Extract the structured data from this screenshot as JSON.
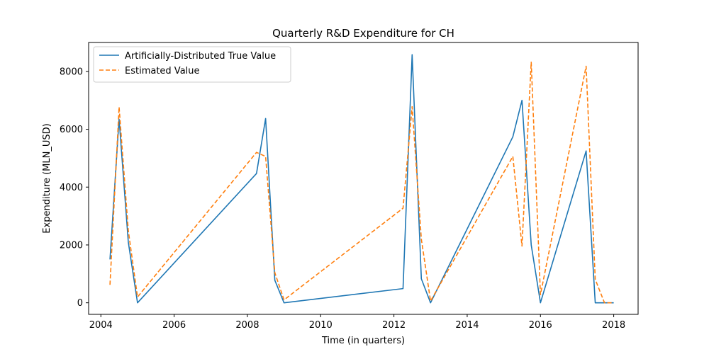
{
  "chart_data": {
    "type": "line",
    "title": "Quarterly R&D Expenditure for CH",
    "xlabel": "Time (in quarters)",
    "ylabel": "Expenditure (MLN_USD)",
    "xlim": [
      "2003-09-01",
      "2018-09-01"
    ],
    "ylim": [
      -400,
      9000
    ],
    "x_ticks": [
      "2004",
      "2006",
      "2008",
      "2010",
      "2012",
      "2014",
      "2016",
      "2018"
    ],
    "y_ticks": [
      0,
      2000,
      4000,
      6000,
      8000
    ],
    "legend_position": "top-left",
    "grid": false,
    "series": [
      {
        "name": "Artificially-Distributed True Value",
        "color": "#1f77b4",
        "style": "solid",
        "points": [
          [
            "2004-04-01",
            1500
          ],
          [
            "2004-07-01",
            6350
          ],
          [
            "2004-10-01",
            2100
          ],
          [
            "2005-01-01",
            0
          ],
          [
            "2008-04-01",
            4470
          ],
          [
            "2008-07-01",
            6370
          ],
          [
            "2008-10-01",
            780
          ],
          [
            "2009-01-01",
            0
          ],
          [
            "2012-04-01",
            490
          ],
          [
            "2012-07-01",
            8580
          ],
          [
            "2012-10-01",
            830
          ],
          [
            "2013-01-01",
            0
          ],
          [
            "2015-04-01",
            5740
          ],
          [
            "2015-07-01",
            7000
          ],
          [
            "2015-10-01",
            2000
          ],
          [
            "2016-01-01",
            0
          ],
          [
            "2017-04-01",
            5250
          ],
          [
            "2017-07-01",
            0
          ],
          [
            "2017-10-01",
            0
          ],
          [
            "2018-01-01",
            0
          ]
        ]
      },
      {
        "name": "Estimated Value",
        "color": "#ff7f0e",
        "style": "dashed",
        "points": [
          [
            "2004-04-01",
            620
          ],
          [
            "2004-07-01",
            6770
          ],
          [
            "2004-10-01",
            2500
          ],
          [
            "2005-01-01",
            200
          ],
          [
            "2008-04-01",
            5200
          ],
          [
            "2008-07-01",
            5060
          ],
          [
            "2008-10-01",
            1040
          ],
          [
            "2009-01-01",
            100
          ],
          [
            "2012-04-01",
            3270
          ],
          [
            "2012-07-01",
            6780
          ],
          [
            "2012-10-01",
            2200
          ],
          [
            "2013-01-01",
            60
          ],
          [
            "2015-04-01",
            5060
          ],
          [
            "2015-07-01",
            1960
          ],
          [
            "2015-10-01",
            8320
          ],
          [
            "2016-01-01",
            280
          ],
          [
            "2017-04-01",
            8180
          ],
          [
            "2017-07-01",
            810
          ],
          [
            "2017-10-01",
            0
          ],
          [
            "2018-01-01",
            0
          ]
        ]
      }
    ]
  }
}
